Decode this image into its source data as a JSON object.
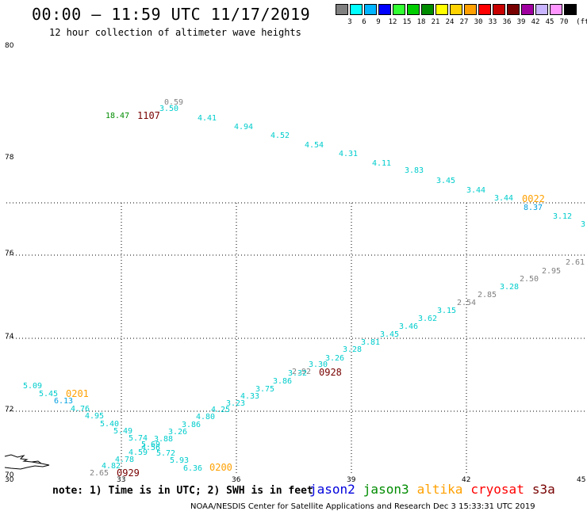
{
  "title": "00:00 – 11:59 UTC 11/17/2019",
  "subtitle": "12 hour collection of altimeter wave heights",
  "legend": {
    "unit": "(ft)",
    "items": [
      {
        "label": "3",
        "color": "#808080"
      },
      {
        "label": "6",
        "color": "#00ffff"
      },
      {
        "label": "9",
        "color": "#00b4ff"
      },
      {
        "label": "12",
        "color": "#0000ff"
      },
      {
        "label": "15",
        "color": "#32ff32"
      },
      {
        "label": "18",
        "color": "#00cd00"
      },
      {
        "label": "21",
        "color": "#008c00"
      },
      {
        "label": "24",
        "color": "#ffff00"
      },
      {
        "label": "27",
        "color": "#ffd200"
      },
      {
        "label": "30",
        "color": "#ffa000"
      },
      {
        "label": "33",
        "color": "#ff0000"
      },
      {
        "label": "36",
        "color": "#c80000"
      },
      {
        "label": "39",
        "color": "#780000"
      },
      {
        "label": "42",
        "color": "#a000a0"
      },
      {
        "label": "45",
        "color": "#c8b4ff"
      },
      {
        "label": "70",
        "color": "#ff96ff"
      },
      {
        "label": "",
        "color": "#000000"
      }
    ]
  },
  "axes": {
    "lat_ticks": [
      "80",
      "78",
      "76",
      "74",
      "72",
      "70"
    ],
    "lon_ticks": [
      "30",
      "33",
      "36",
      "39",
      "42",
      "45"
    ]
  },
  "waves": [
    {
      "text": "0.59",
      "color": "#808080"
    },
    {
      "text": "3.50",
      "color": "#00cccc"
    },
    {
      "text": "4.41",
      "color": "#00cccc"
    },
    {
      "text": "4.94",
      "color": "#00cccc"
    },
    {
      "text": "4.52",
      "color": "#00cccc"
    },
    {
      "text": "4.54",
      "color": "#00cccc"
    },
    {
      "text": "4.31",
      "color": "#00cccc"
    },
    {
      "text": "4.11",
      "color": "#00cccc"
    },
    {
      "text": "3.83",
      "color": "#00cccc"
    },
    {
      "text": "3.45",
      "color": "#00cccc"
    },
    {
      "text": "3.44",
      "color": "#00cccc"
    },
    {
      "text": "3.44",
      "color": "#00cccc"
    },
    {
      "text": "8.37",
      "color": "#00a0e0"
    },
    {
      "text": "3.12",
      "color": "#00cccc"
    },
    {
      "text": "3",
      "color": "#00cccc"
    },
    {
      "text": "18.47",
      "color": "#008c00"
    },
    {
      "text": "2.61",
      "color": "#808080"
    },
    {
      "text": "2.95",
      "color": "#808080"
    },
    {
      "text": "2.50",
      "color": "#808080"
    },
    {
      "text": "3.28",
      "color": "#00cccc"
    },
    {
      "text": "2.85",
      "color": "#808080"
    },
    {
      "text": "2.54",
      "color": "#808080"
    },
    {
      "text": "3.15",
      "color": "#00cccc"
    },
    {
      "text": "3.62",
      "color": "#00cccc"
    },
    {
      "text": "3.46",
      "color": "#00cccc"
    },
    {
      "text": "3.45",
      "color": "#00cccc"
    },
    {
      "text": "3.81",
      "color": "#00cccc"
    },
    {
      "text": "3.28",
      "color": "#00cccc"
    },
    {
      "text": "3.26",
      "color": "#00cccc"
    },
    {
      "text": "3.30",
      "color": "#00cccc"
    },
    {
      "text": "2.92",
      "color": "#808080"
    },
    {
      "text": "3.32",
      "color": "#00cccc"
    },
    {
      "text": "3.86",
      "color": "#00cccc"
    },
    {
      "text": "3.75",
      "color": "#00cccc"
    },
    {
      "text": "4.33",
      "color": "#00cccc"
    },
    {
      "text": "4.25",
      "color": "#00cccc"
    },
    {
      "text": "3.23",
      "color": "#00cccc"
    },
    {
      "text": "4.80",
      "color": "#00cccc"
    },
    {
      "text": "3.86",
      "color": "#00cccc"
    },
    {
      "text": "3.26",
      "color": "#00cccc"
    },
    {
      "text": "3.88",
      "color": "#00cccc"
    },
    {
      "text": "5.74",
      "color": "#00cccc"
    },
    {
      "text": "5.69",
      "color": "#00cccc"
    },
    {
      "text": "4.56",
      "color": "#00cccc"
    },
    {
      "text": "4.59",
      "color": "#00cccc"
    },
    {
      "text": "5.72",
      "color": "#00cccc"
    },
    {
      "text": "5.93",
      "color": "#00cccc"
    },
    {
      "text": "6.36",
      "color": "#00cccc"
    },
    {
      "text": "4.78",
      "color": "#00cccc"
    },
    {
      "text": "4.82",
      "color": "#00cccc"
    },
    {
      "text": "2.65",
      "color": "#808080"
    },
    {
      "text": "5.49",
      "color": "#00cccc"
    },
    {
      "text": "5.40",
      "color": "#00cccc"
    },
    {
      "text": "4.95",
      "color": "#00cccc"
    },
    {
      "text": "4.76",
      "color": "#00cccc"
    },
    {
      "text": "6.13",
      "color": "#00a0e0"
    },
    {
      "text": "5.45",
      "color": "#00cccc"
    },
    {
      "text": "5.09",
      "color": "#00cccc"
    }
  ],
  "time_labels": [
    {
      "text": "1107",
      "color": "#780000"
    },
    {
      "text": "0022",
      "color": "#ffa000"
    },
    {
      "text": "0928",
      "color": "#780000"
    },
    {
      "text": "0201",
      "color": "#ffa000"
    },
    {
      "text": "0929",
      "color": "#780000"
    },
    {
      "text": "0200",
      "color": "#ffa000"
    }
  ],
  "note": "note:  1) Time is in UTC;  2) SWH is in feet",
  "satellites": [
    {
      "name": "jason2",
      "color": "#0000dd"
    },
    {
      "name": "jason3",
      "color": "#008c00"
    },
    {
      "name": "altika",
      "color": "#ffa000"
    },
    {
      "name": "cryosat",
      "color": "#ff0000"
    },
    {
      "name": "s3a",
      "color": "#780000"
    }
  ],
  "footer": "NOAA/NESDIS Center for Satellite Applications and Research    Dec  3 15:33:31 UTC 2019"
}
